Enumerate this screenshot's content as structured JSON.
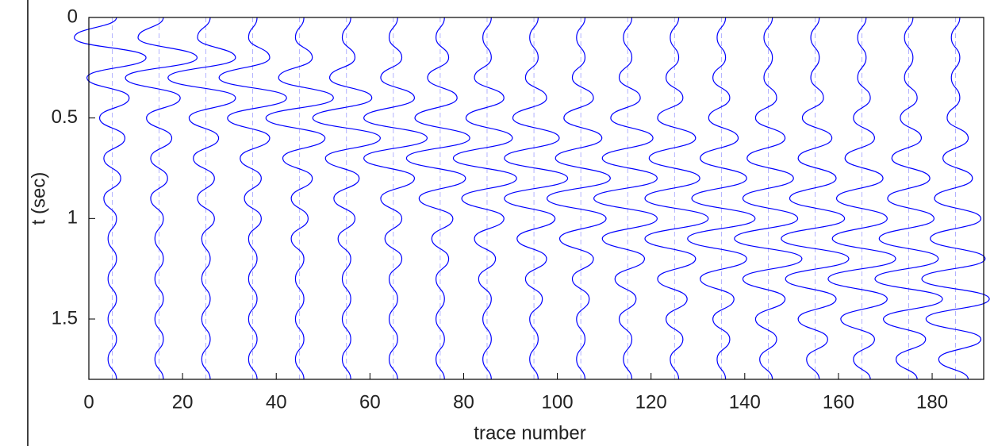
{
  "chart_data": {
    "type": "wiggle",
    "x_label": "trace number",
    "y_label": "t (sec)",
    "color": "#0000ff",
    "xlim": [
      0,
      191
    ],
    "ylim": [
      0,
      1.8
    ],
    "y_reversed": true,
    "xticks": [
      0,
      20,
      40,
      60,
      80,
      100,
      120,
      140,
      160,
      180
    ],
    "yticks": [
      0,
      0.5,
      1,
      1.5
    ],
    "x": [
      5,
      15,
      25,
      35,
      45,
      55,
      65,
      75,
      85,
      95,
      105,
      115,
      125,
      135,
      145,
      155,
      165,
      175,
      185
    ],
    "y": [
      0,
      0.1,
      0.2,
      0.3,
      0.4,
      0.5,
      0.6,
      0.7,
      0.8,
      0.9,
      1,
      1.1,
      1.2,
      1.3,
      1.4,
      1.5,
      1.6,
      1.7,
      1.8
    ],
    "values": [
      [
        0.1,
        -0.9,
        0.8,
        -0.6,
        0.4,
        -0.3,
        0.3,
        -0.2,
        0.2,
        -0.2,
        0.1,
        -0.1,
        0.1,
        -0.1,
        0.1,
        -0.1,
        0.1,
        -0.1,
        0.1
      ],
      [
        0.1,
        -0.5,
        0.9,
        -0.8,
        0.5,
        -0.3,
        0.3,
        -0.2,
        0.2,
        -0.2,
        0.1,
        -0.1,
        0.1,
        -0.1,
        0.1,
        -0.1,
        0.1,
        -0.1,
        0.1
      ],
      [
        0.1,
        -0.2,
        0.7,
        -0.9,
        0.7,
        -0.4,
        0.3,
        -0.3,
        0.2,
        -0.2,
        0.2,
        -0.1,
        0.1,
        -0.1,
        0.1,
        -0.1,
        0.1,
        -0.1,
        0.1
      ],
      [
        0.1,
        -0.1,
        0.4,
        -0.8,
        0.8,
        -0.6,
        0.4,
        -0.3,
        0.2,
        -0.2,
        0.2,
        -0.1,
        0.1,
        -0.1,
        0.1,
        -0.1,
        0.1,
        -0.1,
        0.1
      ],
      [
        0.1,
        -0.1,
        0.3,
        -0.5,
        0.8,
        -0.8,
        0.6,
        -0.4,
        0.3,
        -0.2,
        0.2,
        -0.2,
        0.1,
        -0.1,
        0.1,
        -0.1,
        0.1,
        -0.1,
        0.1
      ],
      [
        0.1,
        -0.1,
        0.2,
        -0.4,
        0.6,
        -0.8,
        0.8,
        -0.5,
        0.3,
        -0.3,
        0.2,
        -0.2,
        0.1,
        -0.1,
        0.1,
        -0.1,
        0.1,
        -0.1,
        0.1
      ],
      [
        0.1,
        -0.1,
        0.2,
        -0.3,
        0.5,
        -0.7,
        0.8,
        -0.7,
        0.5,
        -0.3,
        0.2,
        -0.2,
        0.2,
        -0.1,
        0.1,
        -0.1,
        0.1,
        -0.1,
        0.1
      ],
      [
        0.1,
        -0.1,
        0.2,
        -0.3,
        0.4,
        -0.6,
        0.7,
        -0.8,
        0.6,
        -0.5,
        0.3,
        -0.2,
        0.2,
        -0.1,
        0.1,
        -0.1,
        0.1,
        -0.1,
        0.1
      ],
      [
        0.1,
        -0.1,
        0.1,
        -0.3,
        0.4,
        -0.5,
        0.6,
        -0.8,
        0.7,
        -0.6,
        0.4,
        -0.3,
        0.2,
        -0.2,
        0.1,
        -0.1,
        0.1,
        -0.1,
        0.1
      ],
      [
        0.1,
        -0.1,
        0.1,
        -0.2,
        0.3,
        -0.5,
        0.6,
        -0.7,
        0.8,
        -0.7,
        0.5,
        -0.4,
        0.3,
        -0.2,
        0.2,
        -0.1,
        0.1,
        -0.1,
        0.1
      ],
      [
        0.1,
        -0.1,
        0.1,
        -0.2,
        0.3,
        -0.4,
        0.5,
        -0.6,
        0.7,
        -0.8,
        0.6,
        -0.5,
        0.3,
        -0.2,
        0.2,
        -0.1,
        0.1,
        -0.1,
        0.1
      ],
      [
        0.1,
        -0.1,
        0.1,
        -0.2,
        0.3,
        -0.4,
        0.6,
        -0.6,
        0.7,
        -0.8,
        0.7,
        -0.6,
        0.4,
        -0.3,
        0.2,
        -0.2,
        0.1,
        -0.1,
        0.1
      ],
      [
        0.1,
        -0.1,
        0.1,
        -0.2,
        0.2,
        -0.4,
        0.5,
        -0.6,
        0.6,
        -0.7,
        0.8,
        -0.7,
        0.5,
        -0.4,
        0.3,
        -0.2,
        0.2,
        -0.1,
        0.1
      ],
      [
        0.1,
        -0.1,
        0.1,
        -0.2,
        0.2,
        -0.3,
        0.4,
        -0.5,
        0.6,
        -0.7,
        0.8,
        -0.8,
        0.6,
        -0.5,
        0.3,
        -0.2,
        0.2,
        -0.1,
        0.1
      ],
      [
        0.1,
        -0.1,
        0.1,
        -0.1,
        0.2,
        -0.3,
        0.4,
        -0.5,
        0.6,
        -0.6,
        0.7,
        -0.8,
        0.8,
        -0.6,
        0.4,
        -0.3,
        0.2,
        -0.2,
        0.1
      ],
      [
        0.1,
        -0.1,
        0.1,
        -0.1,
        0.2,
        -0.3,
        0.4,
        -0.4,
        0.5,
        -0.6,
        0.7,
        -0.8,
        0.8,
        -0.7,
        0.5,
        -0.4,
        0.3,
        -0.2,
        0.1
      ],
      [
        0.1,
        -0.1,
        0.1,
        -0.1,
        0.2,
        -0.2,
        0.3,
        -0.4,
        0.5,
        -0.6,
        0.6,
        -0.7,
        0.8,
        -0.8,
        0.6,
        -0.5,
        0.3,
        -0.2,
        0.2
      ],
      [
        0.1,
        -0.1,
        0.1,
        -0.1,
        0.2,
        -0.2,
        0.3,
        -0.4,
        0.5,
        -0.5,
        0.6,
        -0.7,
        0.7,
        -0.8,
        0.8,
        -0.6,
        0.4,
        -0.3,
        0.2
      ],
      [
        0.1,
        -0.1,
        0.1,
        -0.1,
        0.1,
        -0.2,
        0.3,
        -0.3,
        0.4,
        -0.5,
        0.6,
        -0.6,
        0.7,
        -0.8,
        0.8,
        -0.7,
        0.6,
        -0.4,
        0.3
      ]
    ]
  }
}
